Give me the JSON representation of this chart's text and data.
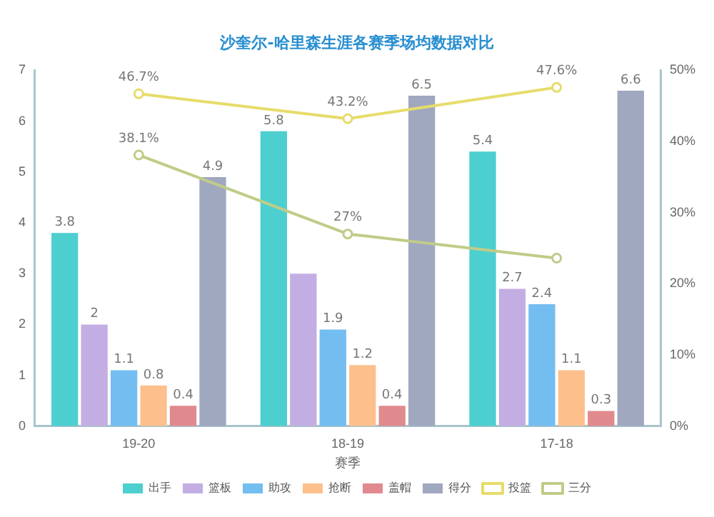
{
  "chart_data": {
    "type": "bar",
    "title": "沙奎尔-哈里森生涯各赛季场均数据对比",
    "xlabel": "赛季",
    "categories": [
      "19-20",
      "18-19",
      "17-18"
    ],
    "series": [
      {
        "name": "出手",
        "color": "#4ecfcf",
        "values": [
          3.8,
          5.8,
          5.4
        ],
        "value_labels": [
          "3.8",
          "5.8",
          "5.4"
        ]
      },
      {
        "name": "篮板",
        "color": "#c3aee3",
        "values": [
          2,
          3,
          2.7
        ],
        "value_labels": [
          "2",
          null,
          "2.7"
        ]
      },
      {
        "name": "助攻",
        "color": "#74bdf0",
        "values": [
          1.1,
          1.9,
          2.4
        ],
        "value_labels": [
          "1.1",
          "1.9",
          "2.4"
        ]
      },
      {
        "name": "抢断",
        "color": "#fdc08c",
        "values": [
          0.8,
          1.2,
          1.1
        ],
        "value_labels": [
          "0.8",
          "1.2",
          "1.1"
        ]
      },
      {
        "name": "盖帽",
        "color": "#e08a8e",
        "values": [
          0.4,
          0.4,
          0.3
        ],
        "value_labels": [
          "0.4",
          "0.4",
          "0.3"
        ]
      },
      {
        "name": "得分",
        "color": "#a0a8c0",
        "values": [
          4.9,
          6.5,
          6.6
        ],
        "value_labels": [
          "4.9",
          "6.5",
          "6.6"
        ]
      },
      {
        "name": "投篮",
        "type": "line",
        "axis": "y2",
        "color": "#e6dc6a",
        "values": [
          46.7,
          43.2,
          47.6
        ],
        "value_labels": [
          "46.7%",
          "43.2%",
          "47.6%"
        ]
      },
      {
        "name": "三分",
        "type": "line",
        "axis": "y2",
        "color": "#bfcc88",
        "values": [
          38.1,
          27,
          23.6
        ],
        "value_labels": [
          "38.1%",
          "27%",
          null
        ]
      }
    ],
    "ylim": [
      0,
      7
    ],
    "yticks": [
      0,
      1,
      2,
      3,
      4,
      5,
      6,
      7
    ],
    "y2lim": [
      0,
      50
    ],
    "y2ticks": [
      {
        "value": 0,
        "label": "0%"
      },
      {
        "value": 10,
        "label": "10%"
      },
      {
        "value": 20,
        "label": "20%"
      },
      {
        "value": 30,
        "label": "30%"
      },
      {
        "value": 40,
        "label": "40%"
      },
      {
        "value": 50,
        "label": "50%"
      }
    ],
    "grid": false,
    "legend": "bottom",
    "marker": "circle",
    "line_style": "solid"
  }
}
